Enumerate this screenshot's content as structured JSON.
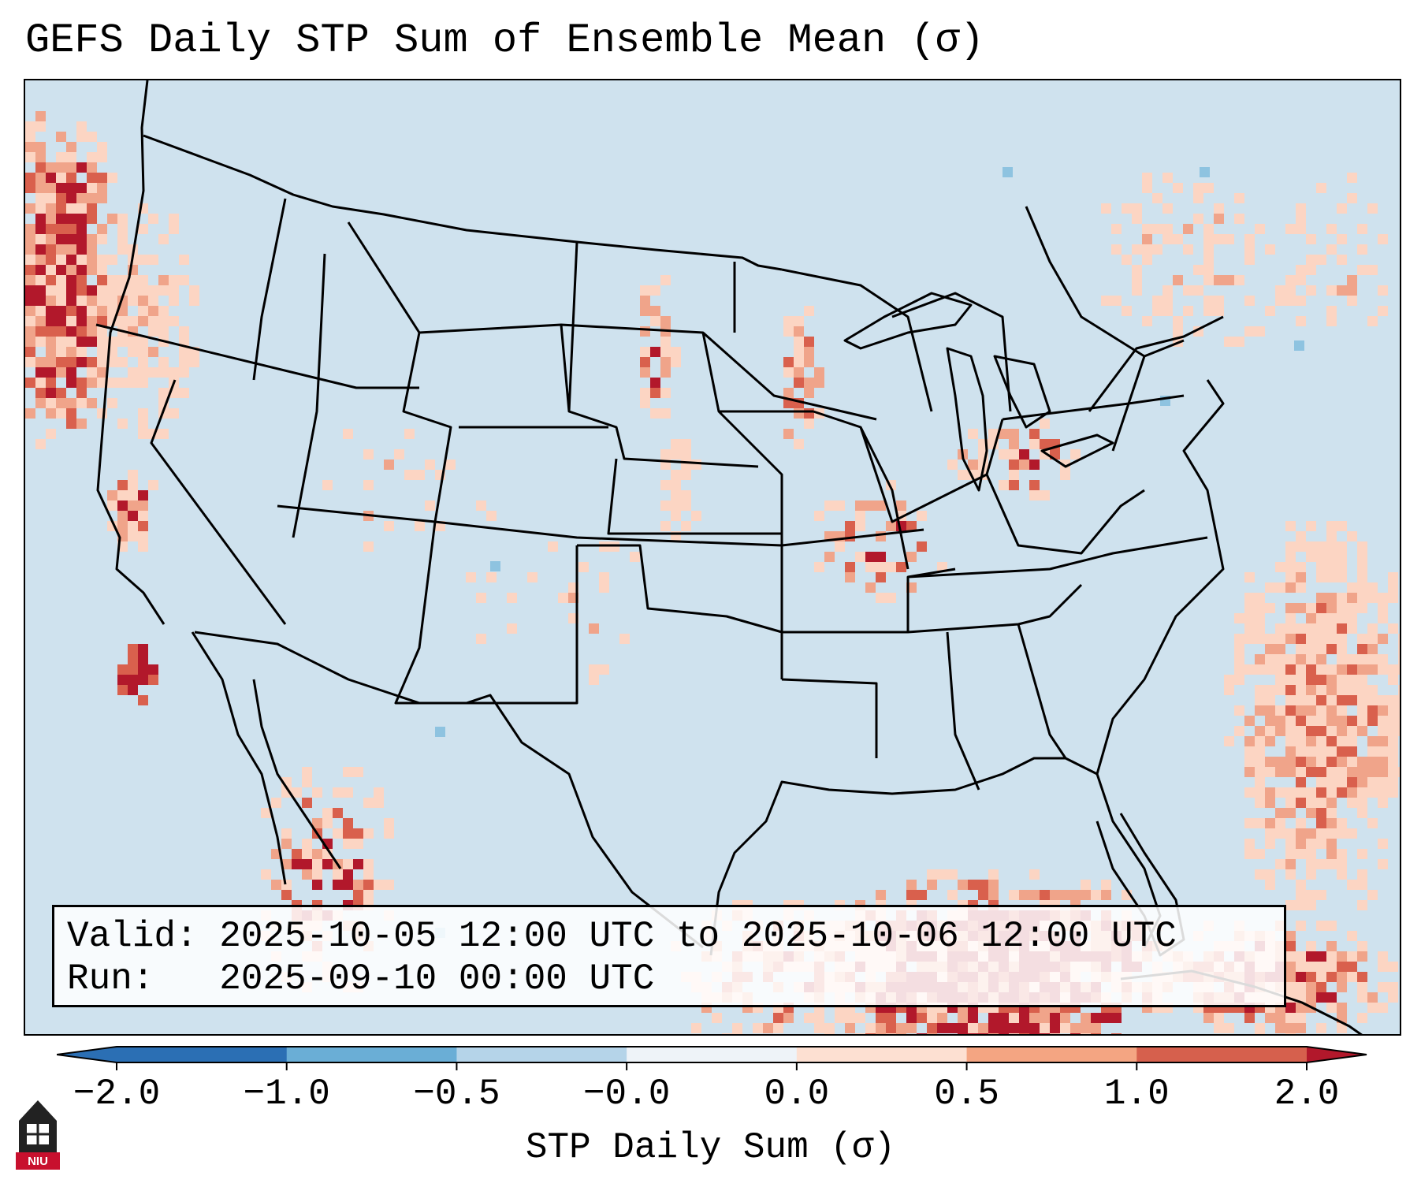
{
  "title": "GEFS Daily STP Sum of Ensemble Mean (σ)",
  "info": {
    "valid_line": "Valid: 2025-10-05 12:00 UTC to 2025-10-06 12:00 UTC",
    "run_line": "Run:   2025-09-10 00:00 UTC"
  },
  "colorbar": {
    "label": "STP Daily Sum (σ)",
    "ticks": [
      "−2.0",
      "−1.0",
      "−0.5",
      "−0.0",
      "0.0",
      "0.5",
      "1.0",
      "2.0"
    ],
    "colors": [
      "#2b6fb4",
      "#6aaed6",
      "#b5d4e9",
      "#eef3f8",
      "#fde0d2",
      "#f4a582",
      "#d6604d",
      "#b2182b"
    ]
  },
  "colors": {
    "background": "#cfe2ee",
    "light": "#fcd5c3",
    "medium": "#f0a48a",
    "strong": "#d9604d",
    "dark": "#b2182b",
    "negative": "#8ec3e0",
    "state_lines": "#000000"
  },
  "logo": {
    "text": "NIU"
  }
}
